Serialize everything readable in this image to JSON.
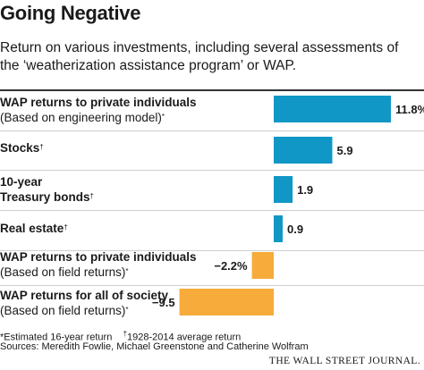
{
  "title": "Going Negative",
  "subtitle": "Return on various investments, including several assessments of the ‘weatherization assistance program’ or WAP.",
  "footnote": {
    "estimated": "*Estimated 16-year return",
    "dagger_mark": "†",
    "average": "1928-2014 average return"
  },
  "source": "Sources: Meredith Fowlie, Michael Greenstone and Catherine Wolfram",
  "brand": "THE WALL STREET JOURNAL.",
  "colors": {
    "positive": "#1197c6",
    "negative": "#f6ab3a"
  },
  "chart_data": {
    "type": "bar",
    "orientation": "horizontal",
    "categories": [
      "WAP returns to private individuals (Based on engineering model)*",
      "Stocks†",
      "10-year Treasury bonds†",
      "Real estate†",
      "WAP returns to private individuals (Based on field returns)*",
      "WAP returns for all of society (Based on field returns)*"
    ],
    "values": [
      11.8,
      5.9,
      1.9,
      0.9,
      -2.2,
      -9.5
    ],
    "value_labels": [
      "11.8%",
      "5.9",
      "1.9",
      "0.9",
      "−2.2%",
      "−9.5"
    ],
    "xlim": [
      -9.5,
      11.8
    ]
  },
  "rows": [
    {
      "line1": "WAP returns to private individuals",
      "mark1": "",
      "line2": "(Based on engineering model)",
      "mark2": "*"
    },
    {
      "line1": "Stocks",
      "mark1": "†",
      "line2": "",
      "mark2": ""
    },
    {
      "line1": "10-year",
      "mark1": "",
      "line2": "Treasury bonds",
      "mark2": "†",
      "line2_bold": true
    },
    {
      "line1": "Real estate",
      "mark1": "†",
      "line2": "",
      "mark2": ""
    },
    {
      "line1": "WAP returns to private individuals",
      "mark1": "",
      "line2": "(Based on field returns)",
      "mark2": "*"
    },
    {
      "line1": "WAP returns for all of society",
      "mark1": "",
      "line2": "(Based on field returns)",
      "mark2": "*"
    }
  ]
}
